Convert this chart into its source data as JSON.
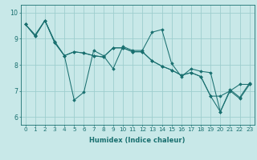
{
  "xlabel": "Humidex (Indice chaleur)",
  "background_color": "#c8e8e8",
  "line_color": "#1a7070",
  "grid_color": "#9ecece",
  "xlim": [
    -0.5,
    23.5
  ],
  "ylim": [
    5.7,
    10.3
  ],
  "xticks": [
    0,
    1,
    2,
    3,
    4,
    5,
    6,
    7,
    8,
    9,
    10,
    11,
    12,
    13,
    14,
    15,
    16,
    17,
    18,
    19,
    20,
    21,
    22,
    23
  ],
  "yticks": [
    6,
    7,
    8,
    9,
    10
  ],
  "lines": [
    [
      9.55,
      9.15,
      9.7,
      8.9,
      8.35,
      6.65,
      6.95,
      8.55,
      8.35,
      7.85,
      8.7,
      8.55,
      8.55,
      9.25,
      9.35,
      8.05,
      7.55,
      7.85,
      7.75,
      7.7,
      6.2,
      7.05,
      6.75,
      7.3
    ],
    [
      9.55,
      9.1,
      9.7,
      8.85,
      8.35,
      8.5,
      8.45,
      8.35,
      8.3,
      8.65,
      8.65,
      8.5,
      8.5,
      8.15,
      7.95,
      7.8,
      7.6,
      7.7,
      7.55,
      6.8,
      6.8,
      7.0,
      7.25,
      7.25
    ],
    [
      9.55,
      9.1,
      9.7,
      8.85,
      8.35,
      8.5,
      8.45,
      8.35,
      8.3,
      8.65,
      8.65,
      8.5,
      8.5,
      8.15,
      7.95,
      7.8,
      7.6,
      7.7,
      7.55,
      6.8,
      6.2,
      7.0,
      6.7,
      7.25
    ]
  ],
  "xlabel_fontsize": 6.0,
  "tick_fontsize": 5.2
}
